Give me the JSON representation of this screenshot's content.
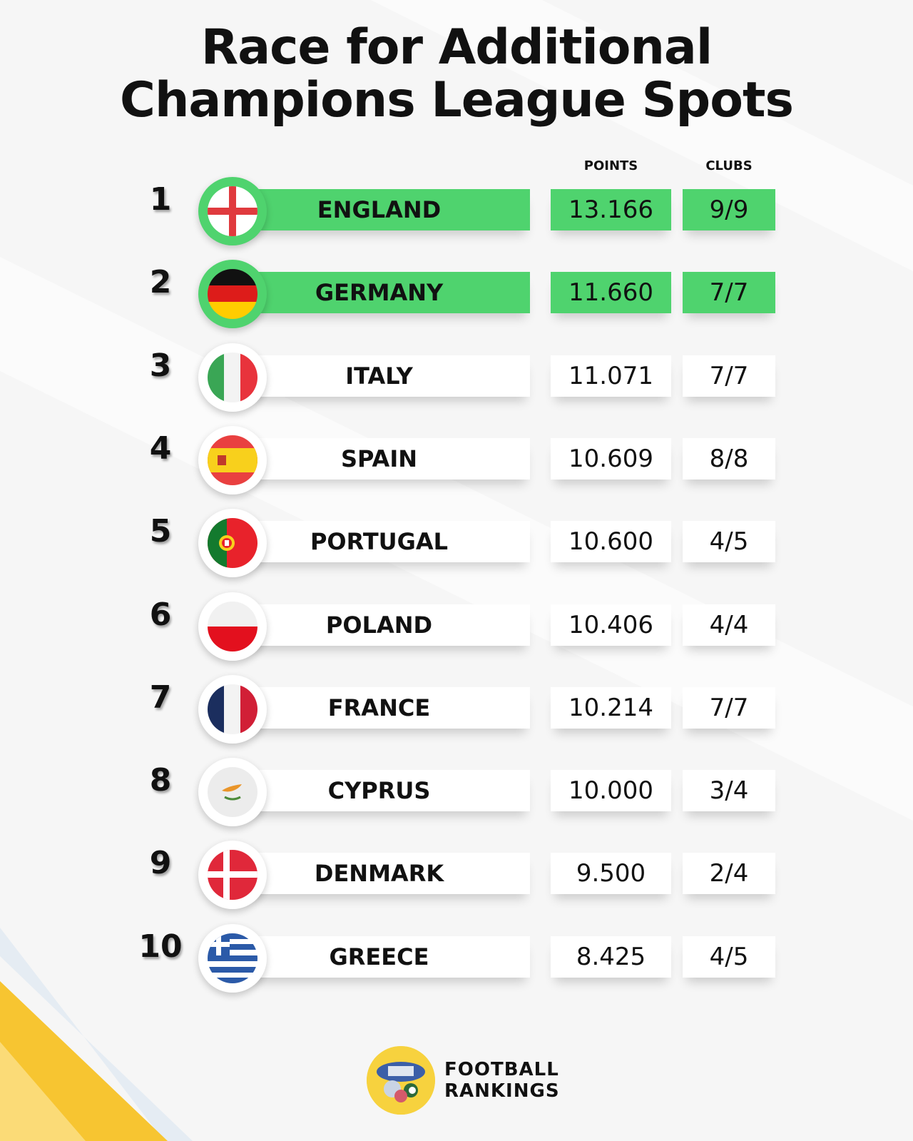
{
  "title": {
    "line1": "Race for Additional",
    "line2": "Champions League Spots"
  },
  "columns": {
    "points": "POINTS",
    "clubs": "CLUBS"
  },
  "rows": [
    {
      "rank": "1",
      "country": "ENGLAND",
      "points": "13.166",
      "clubs": "9/9",
      "flag": "england-flag-icon",
      "highlight": true
    },
    {
      "rank": "2",
      "country": "GERMANY",
      "points": "11.660",
      "clubs": "7/7",
      "flag": "germany-flag-icon",
      "highlight": true
    },
    {
      "rank": "3",
      "country": "ITALY",
      "points": "11.071",
      "clubs": "7/7",
      "flag": "italy-flag-icon",
      "highlight": false
    },
    {
      "rank": "4",
      "country": "SPAIN",
      "points": "10.609",
      "clubs": "8/8",
      "flag": "spain-flag-icon",
      "highlight": false
    },
    {
      "rank": "5",
      "country": "PORTUGAL",
      "points": "10.600",
      "clubs": "4/5",
      "flag": "portugal-flag-icon",
      "highlight": false
    },
    {
      "rank": "6",
      "country": "POLAND",
      "points": "10.406",
      "clubs": "4/4",
      "flag": "poland-flag-icon",
      "highlight": false
    },
    {
      "rank": "7",
      "country": "FRANCE",
      "points": "10.214",
      "clubs": "7/7",
      "flag": "france-flag-icon",
      "highlight": false
    },
    {
      "rank": "8",
      "country": "CYPRUS",
      "points": "10.000",
      "clubs": "3/4",
      "flag": "cyprus-flag-icon",
      "highlight": false
    },
    {
      "rank": "9",
      "country": "DENMARK",
      "points": "9.500",
      "clubs": "2/4",
      "flag": "denmark-flag-icon",
      "highlight": false
    },
    {
      "rank": "10",
      "country": "GREECE",
      "points": "8.425",
      "clubs": "4/5",
      "flag": "greece-flag-icon",
      "highlight": false
    }
  ],
  "brand": {
    "line1": "FOOTBALL",
    "line2": "RANKINGS",
    "logo": "football-rankings-logo"
  },
  "colors": {
    "highlight": "#4fd36e",
    "accent_yellow": "#f7c531",
    "text": "#111111"
  }
}
